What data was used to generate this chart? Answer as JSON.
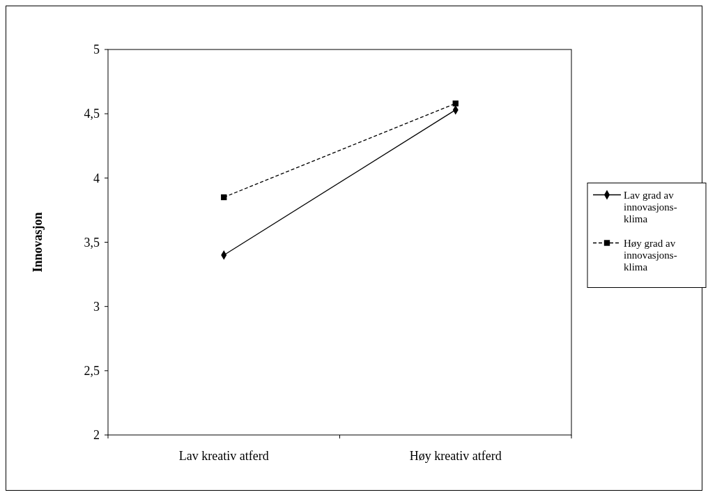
{
  "chart_data": {
    "type": "line",
    "ylabel": "Innovasjon",
    "categories": [
      "Lav kreativ atferd",
      "Høy kreativ atferd"
    ],
    "series": [
      {
        "name": "Lav grad av innovasjons-klima",
        "color": "#000000",
        "values": [
          3.4,
          4.53
        ],
        "marker": "diamond",
        "line_style": "solid"
      },
      {
        "name": "Høy grad av innovasjons-klima",
        "color": "#000000",
        "values": [
          3.85,
          4.58
        ],
        "marker": "square",
        "line_style": "dashed"
      }
    ],
    "ylim": [
      2,
      5
    ],
    "yticks": [
      2,
      {
        "value": 2.5,
        "label": "2,5"
      },
      3,
      {
        "value": 3.5,
        "label": "3,5"
      },
      4,
      {
        "value": 4.5,
        "label": "4,5"
      },
      5
    ],
    "grid": false,
    "legend": "right"
  }
}
